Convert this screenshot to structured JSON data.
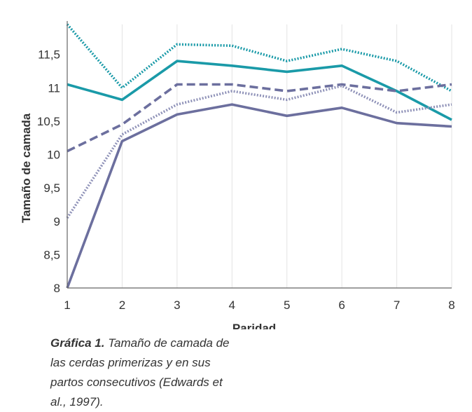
{
  "chart_data": {
    "type": "line",
    "x": [
      1,
      2,
      3,
      4,
      5,
      6,
      7,
      8
    ],
    "xlabel": "Paridad",
    "ylabel": "Tamaño de camada",
    "ylim": [
      8,
      12
    ],
    "yticks": [
      8,
      8.5,
      9,
      9.5,
      10,
      10.5,
      11,
      11.5
    ],
    "ytick_labels": [
      "8",
      "8,5",
      "9",
      "9,5",
      "10",
      "10,5",
      "11",
      "11,5"
    ],
    "xtick_labels": [
      "1",
      "2",
      "3",
      "4",
      "5",
      "6",
      "7",
      "8"
    ],
    "grid": "vertical",
    "series": [
      {
        "values": [
          11.95,
          11.0,
          11.65,
          11.63,
          11.4,
          11.58,
          11.4,
          10.95
        ],
        "color": "#1a9aa8",
        "style": "dotted"
      },
      {
        "values": [
          11.05,
          10.82,
          11.4,
          11.33,
          11.24,
          11.33,
          10.95,
          10.52
        ],
        "color": "#1a9aa8",
        "style": "solid"
      },
      {
        "values": [
          10.05,
          10.45,
          11.05,
          11.05,
          10.95,
          11.05,
          10.95,
          11.05
        ],
        "color": "#6c6f9e",
        "style": "dashed"
      },
      {
        "values": [
          9.05,
          10.3,
          10.75,
          10.95,
          10.82,
          11.03,
          10.63,
          10.75
        ],
        "color": "#8f92b8",
        "style": "dotted"
      },
      {
        "values": [
          8.0,
          10.2,
          10.6,
          10.75,
          10.58,
          10.7,
          10.47,
          10.42
        ],
        "color": "#6c6f9e",
        "style": "solid"
      }
    ]
  },
  "caption": {
    "label": "Gráfica 1.",
    "text": " Tamaño de camada de las cerdas primerizas y en sus partos consecutivos (Edwards et al., 1997)."
  }
}
